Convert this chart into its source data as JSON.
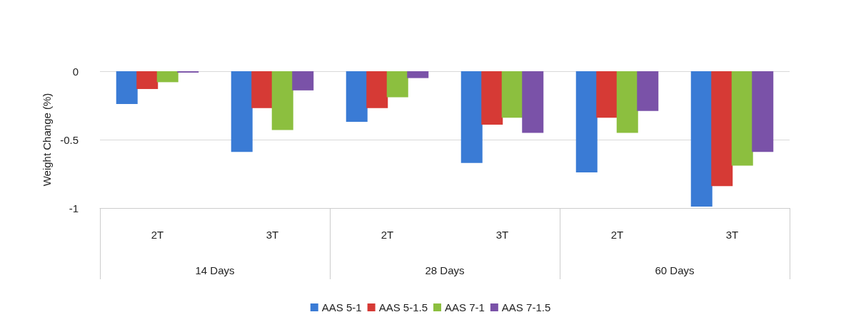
{
  "chart_data": {
    "type": "bar",
    "ylabel": "Weight Change (%)",
    "categories": [
      "2T",
      "3T",
      "2T",
      "3T",
      "2T",
      "3T"
    ],
    "annotations": [
      "14 Days",
      "28 Days",
      "60 Days"
    ],
    "series": [
      {
        "name": "AAS 5-1",
        "color": "#3a7bd5",
        "values": [
          -0.24,
          -0.59,
          -0.37,
          -0.67,
          -0.74,
          -0.99
        ]
      },
      {
        "name": "AAS 5-1.5",
        "color": "#d63a35",
        "values": [
          -0.13,
          -0.27,
          -0.27,
          -0.39,
          -0.34,
          -0.84
        ]
      },
      {
        "name": "AAS 7-1",
        "color": "#8cbf3f",
        "values": [
          -0.08,
          -0.43,
          -0.19,
          -0.34,
          -0.45,
          -0.69
        ]
      },
      {
        "name": "AAS 7-1.5",
        "color": "#7a52a8",
        "values": [
          -0.01,
          -0.14,
          -0.05,
          -0.45,
          -0.29,
          -0.59
        ]
      }
    ],
    "ylim": [
      -1,
      0
    ],
    "yticks": [
      0,
      -0.5,
      -1
    ],
    "grid": "y",
    "legend": "bottom"
  }
}
